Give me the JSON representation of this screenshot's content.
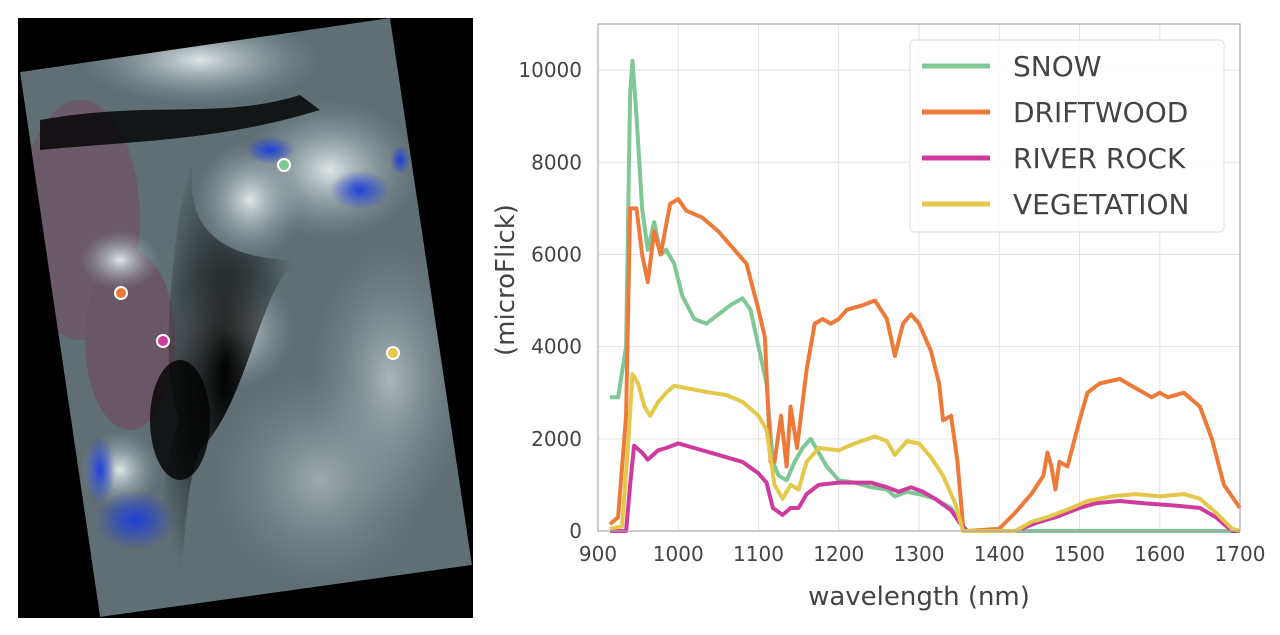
{
  "image_panel": {
    "markers": [
      {
        "label": "SNOW",
        "color": "#7fc794"
      },
      {
        "label": "DRIFTWOOD",
        "color": "#ee7a3a"
      },
      {
        "label": "RIVER ROCK",
        "color": "#cf3a9e"
      },
      {
        "label": "VEGETATION",
        "color": "#e3c84a"
      }
    ]
  },
  "chart_data": {
    "type": "line",
    "title": "",
    "xlabel": "wavelength (nm)",
    "ylabel": "(microFlick)",
    "xlim": [
      900,
      1700
    ],
    "ylim": [
      0,
      11000
    ],
    "xticks": [
      900,
      1000,
      1100,
      1200,
      1300,
      1400,
      1500,
      1600,
      1700
    ],
    "yticks": [
      0,
      2000,
      4000,
      6000,
      8000,
      10000
    ],
    "grid": true,
    "legend_position": "top-right",
    "series": [
      {
        "name": "SNOW",
        "color": "#7fc794",
        "x": [
          915,
          925,
          935,
          940,
          943,
          948,
          955,
          962,
          970,
          978,
          985,
          995,
          1005,
          1020,
          1035,
          1050,
          1065,
          1080,
          1090,
          1100,
          1110,
          1118,
          1125,
          1135,
          1145,
          1155,
          1165,
          1175,
          1185,
          1200,
          1220,
          1240,
          1260,
          1270,
          1285,
          1300,
          1320,
          1340,
          1350,
          1360,
          1450,
          1700
        ],
        "y": [
          2900,
          2900,
          4000,
          9500,
          10200,
          9000,
          7000,
          6100,
          6700,
          6000,
          6100,
          5800,
          5100,
          4600,
          4500,
          4700,
          4900,
          5050,
          4800,
          4000,
          3200,
          1500,
          1200,
          1100,
          1500,
          1800,
          2000,
          1700,
          1400,
          1100,
          1050,
          950,
          900,
          750,
          850,
          800,
          700,
          500,
          200,
          0,
          0,
          0
        ]
      },
      {
        "name": "DRIFTWOOD",
        "color": "#ee7a3a",
        "x": [
          915,
          925,
          935,
          940,
          948,
          955,
          962,
          970,
          978,
          990,
          1000,
          1010,
          1030,
          1050,
          1070,
          1085,
          1100,
          1108,
          1115,
          1120,
          1128,
          1135,
          1140,
          1148,
          1160,
          1170,
          1180,
          1190,
          1200,
          1210,
          1230,
          1245,
          1260,
          1270,
          1280,
          1290,
          1300,
          1315,
          1325,
          1330,
          1340,
          1348,
          1355,
          1360,
          1400,
          1420,
          1440,
          1455,
          1460,
          1465,
          1470,
          1475,
          1485,
          1500,
          1510,
          1525,
          1550,
          1570,
          1590,
          1600,
          1610,
          1630,
          1650,
          1665,
          1680,
          1700
        ],
        "y": [
          150,
          300,
          2500,
          7000,
          7000,
          6000,
          5400,
          6500,
          6000,
          7100,
          7200,
          6950,
          6800,
          6500,
          6100,
          5800,
          4800,
          4200,
          1500,
          1500,
          2500,
          1400,
          2700,
          1800,
          3500,
          4500,
          4600,
          4500,
          4600,
          4800,
          4900,
          5000,
          4600,
          3800,
          4500,
          4700,
          4500,
          3900,
          3200,
          2400,
          2500,
          1500,
          100,
          0,
          50,
          400,
          800,
          1200,
          1700,
          1400,
          900,
          1500,
          1400,
          2400,
          3000,
          3200,
          3300,
          3100,
          2900,
          3000,
          2900,
          3000,
          2700,
          2000,
          1000,
          500
        ]
      },
      {
        "name": "RIVER ROCK",
        "color": "#cf3a9e",
        "x": [
          915,
          935,
          940,
          945,
          955,
          962,
          975,
          985,
          1000,
          1020,
          1050,
          1080,
          1100,
          1110,
          1118,
          1130,
          1140,
          1150,
          1160,
          1175,
          1200,
          1220,
          1240,
          1260,
          1275,
          1290,
          1305,
          1320,
          1340,
          1350,
          1360,
          1420,
          1450,
          1470,
          1500,
          1520,
          1550,
          1580,
          1620,
          1650,
          1670,
          1690,
          1700
        ],
        "y": [
          0,
          0,
          1000,
          1850,
          1700,
          1550,
          1750,
          1800,
          1900,
          1800,
          1650,
          1500,
          1250,
          1050,
          500,
          350,
          500,
          500,
          800,
          1000,
          1050,
          1050,
          1050,
          950,
          850,
          950,
          850,
          700,
          450,
          200,
          0,
          0,
          200,
          300,
          500,
          600,
          650,
          600,
          550,
          500,
          300,
          0,
          0
        ]
      },
      {
        "name": "VEGETATION",
        "color": "#e3c84a",
        "x": [
          915,
          930,
          938,
          943,
          950,
          958,
          965,
          975,
          985,
          995,
          1010,
          1040,
          1060,
          1080,
          1100,
          1110,
          1120,
          1130,
          1140,
          1150,
          1160,
          1175,
          1200,
          1220,
          1245,
          1260,
          1270,
          1285,
          1300,
          1315,
          1330,
          1345,
          1355,
          1420,
          1440,
          1460,
          1490,
          1510,
          1540,
          1570,
          1600,
          1630,
          1650,
          1670,
          1690,
          1700
        ],
        "y": [
          50,
          100,
          2000,
          3400,
          3200,
          2700,
          2500,
          2800,
          3000,
          3150,
          3100,
          3000,
          2950,
          2800,
          2500,
          2200,
          1000,
          700,
          1000,
          900,
          1500,
          1800,
          1750,
          1900,
          2050,
          1950,
          1650,
          1950,
          1900,
          1600,
          1200,
          600,
          0,
          0,
          200,
          300,
          500,
          650,
          750,
          800,
          750,
          800,
          700,
          400,
          50,
          0
        ]
      }
    ]
  }
}
